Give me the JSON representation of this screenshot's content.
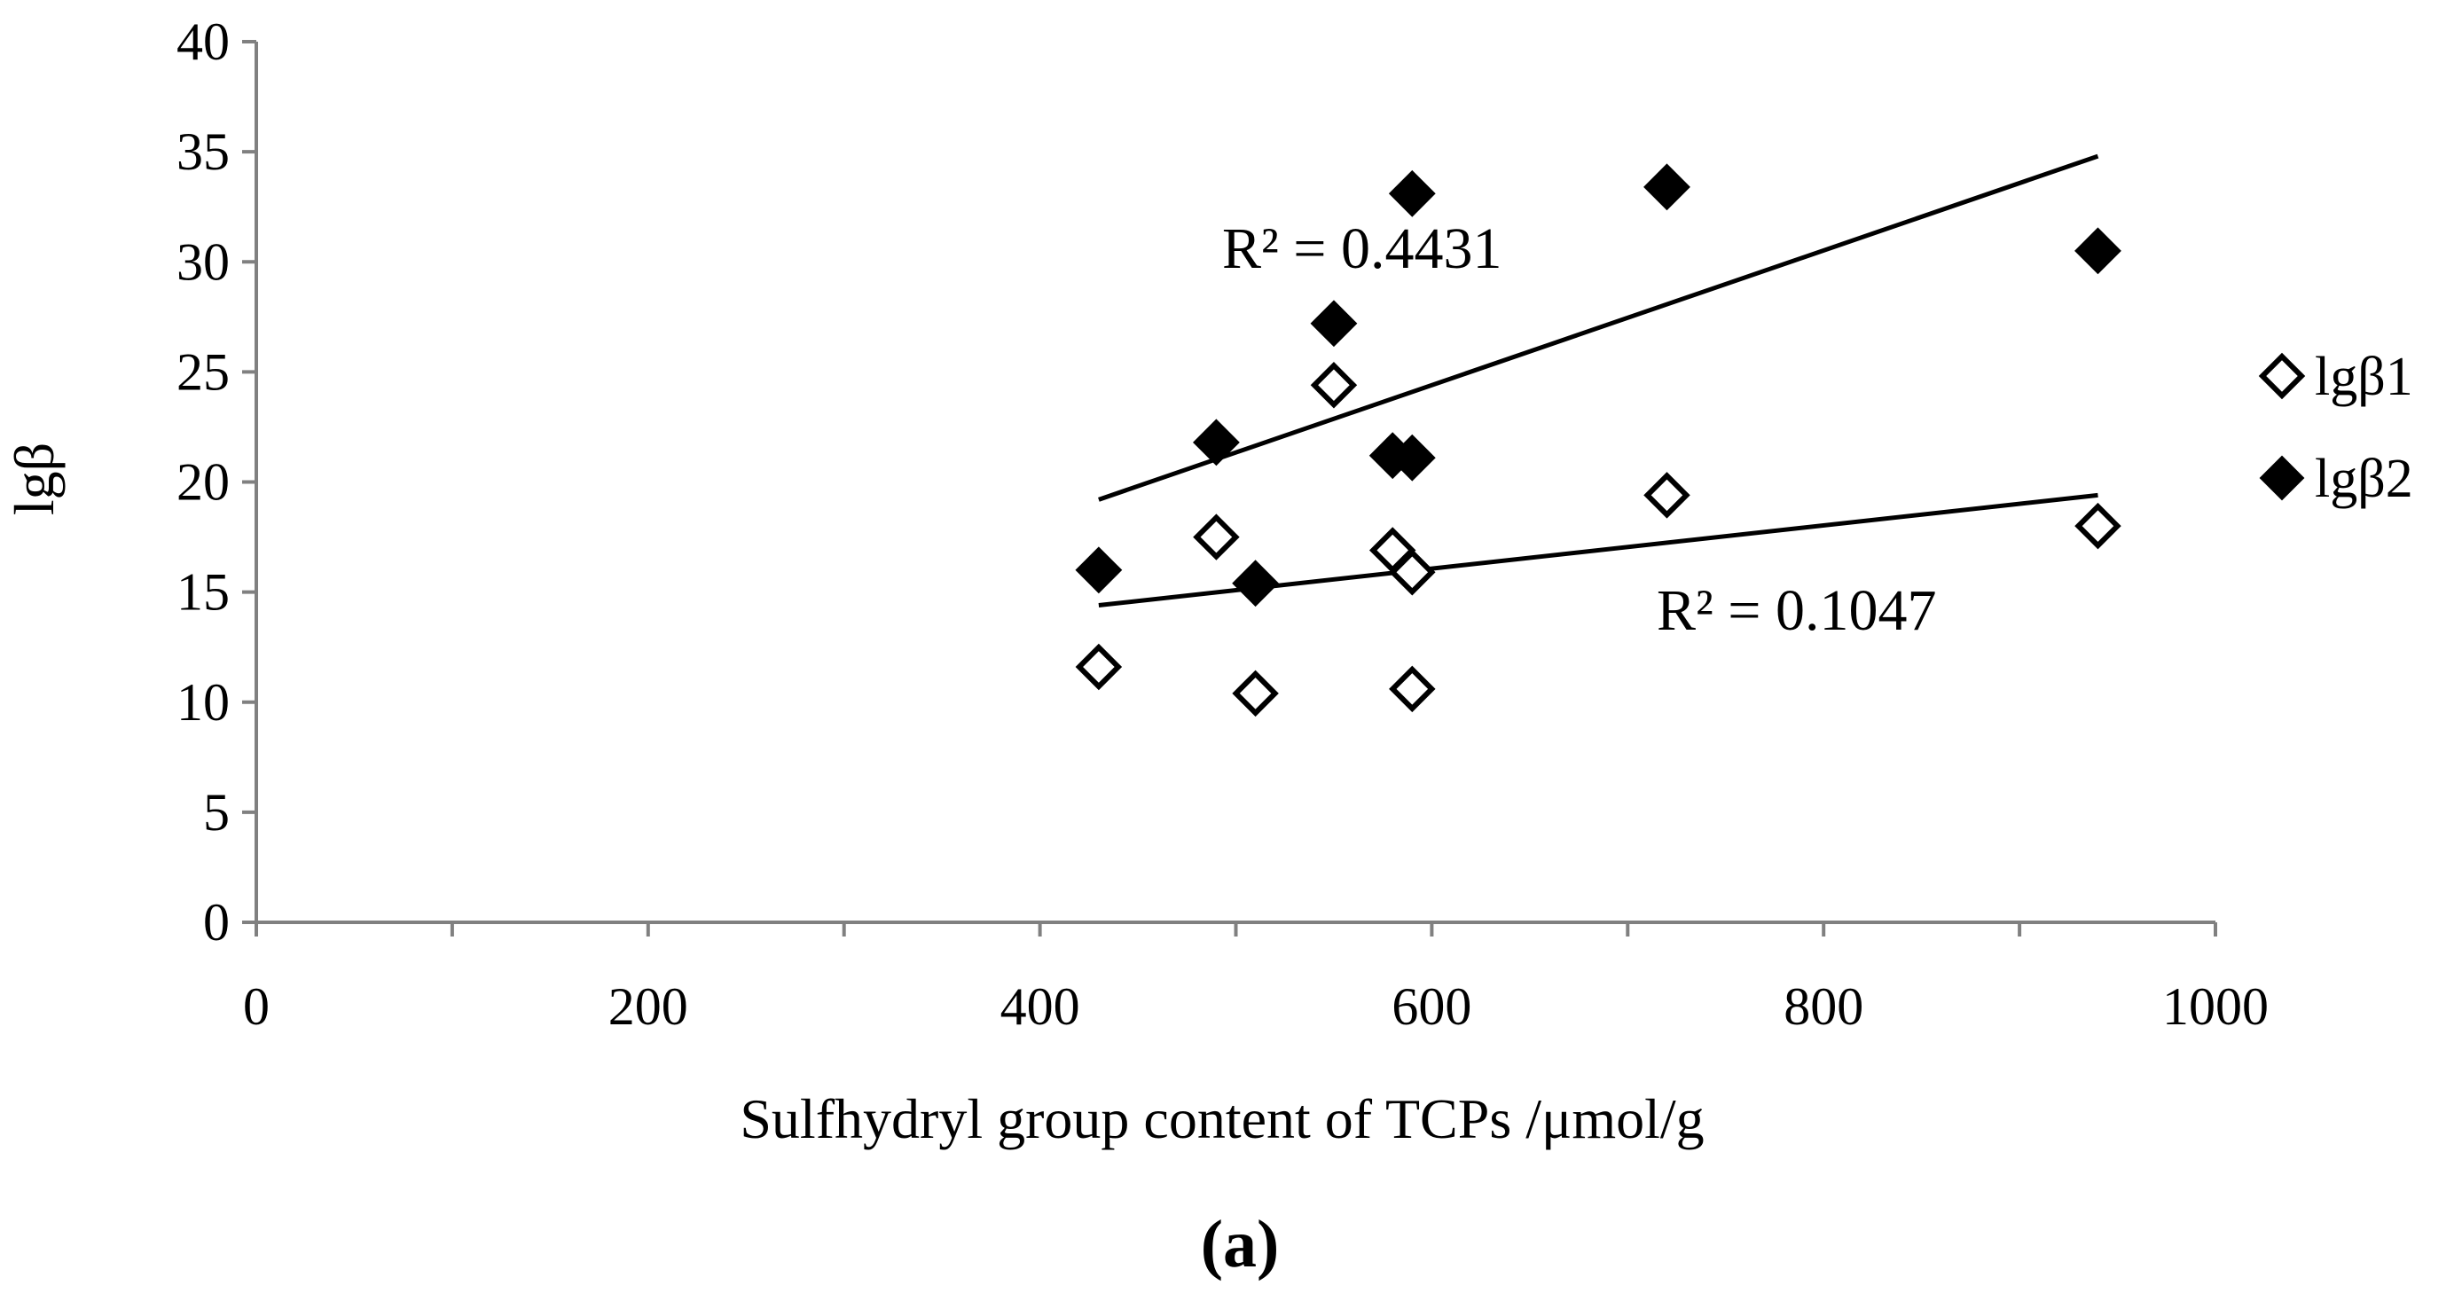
{
  "chart_data": {
    "type": "scatter",
    "title": "",
    "xlabel": "Sulfhydryl group content of TCPs /μmol/g",
    "ylabel": "lgβ",
    "xlim": [
      0,
      1000
    ],
    "ylim": [
      0,
      40
    ],
    "x_ticks": [
      "0",
      "200",
      "400",
      "600",
      "800",
      "1000"
    ],
    "y_ticks": [
      "0",
      "5",
      "10",
      "15",
      "20",
      "25",
      "30",
      "35",
      "40"
    ],
    "grid": false,
    "legend_position": "right",
    "series": [
      {
        "name": "lgβ1",
        "marker": "diamond-open",
        "x": [
          430,
          490,
          510,
          550,
          580,
          590,
          590,
          720,
          940
        ],
        "y": [
          11.6,
          17.5,
          10.4,
          24.4,
          16.9,
          15.9,
          10.6,
          19.4,
          18.0
        ],
        "trendline": {
          "x": [
            430,
            940
          ],
          "y": [
            14.4,
            19.4
          ],
          "r2_label": "R² = 0.1047"
        }
      },
      {
        "name": "lgβ2",
        "marker": "diamond-filled",
        "x": [
          430,
          490,
          510,
          550,
          580,
          590,
          590,
          720,
          940
        ],
        "y": [
          16.0,
          21.8,
          15.4,
          27.2,
          21.2,
          21.1,
          33.1,
          33.4,
          30.5
        ],
        "trendline": {
          "x": [
            430,
            940
          ],
          "y": [
            19.2,
            34.8
          ],
          "r2_label": "R² = 0.4431"
        }
      }
    ],
    "caption": "(a)"
  },
  "colors": {
    "axis": "#808080",
    "ink": "#000000",
    "background": "#ffffff"
  }
}
